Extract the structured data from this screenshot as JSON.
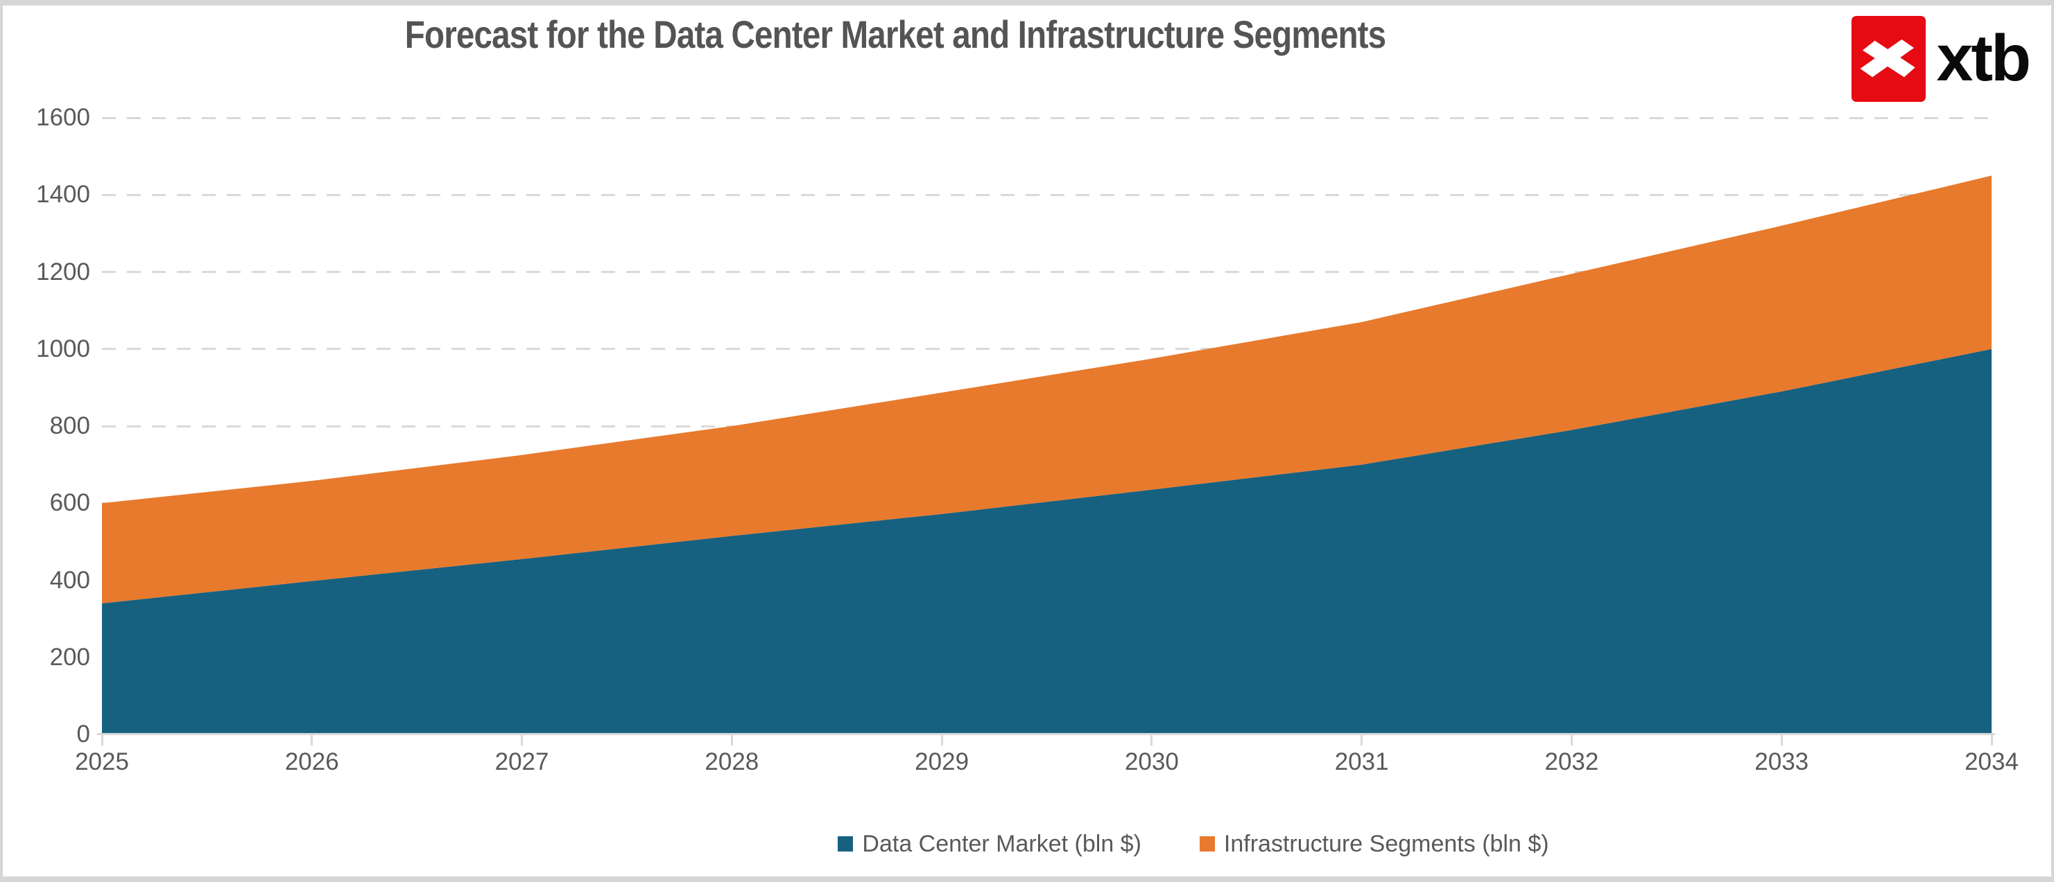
{
  "frame": {
    "background": "#d6d6d6",
    "card_background": "#ffffff"
  },
  "header": {
    "title": "Forecast for the Data Center Market and Infrastructure Segments",
    "title_color": "#545454"
  },
  "logo": {
    "text": "xtb",
    "mark_icon": "xtb-x-mark",
    "mark_color": "#e60a13",
    "mark_glyph_color": "#ffffff",
    "text_color": "#0a0a0a"
  },
  "chart_data": {
    "type": "area",
    "stacked": true,
    "title": "Forecast for the Data Center Market and Infrastructure Segments",
    "x": [
      2025,
      2026,
      2027,
      2028,
      2029,
      2030,
      2031,
      2032,
      2033,
      2034
    ],
    "series": [
      {
        "name": "Data Center Market (bln $)",
        "color": "#176180",
        "values": [
          340,
          398,
          455,
          515,
          572,
          635,
          700,
          790,
          890,
          1000
        ]
      },
      {
        "name": "Infrastructure Segments (bln $)",
        "color": "#e87a2d",
        "values": [
          260,
          260,
          270,
          285,
          315,
          340,
          370,
          405,
          430,
          450
        ]
      }
    ],
    "stacked_totals": [
      600,
      658,
      725,
      800,
      887,
      975,
      1070,
      1195,
      1320,
      1450
    ],
    "xlabel": "",
    "ylabel": "",
    "ylim": [
      0,
      1600
    ],
    "yticks": [
      0,
      200,
      400,
      600,
      800,
      1000,
      1200,
      1400,
      1600
    ],
    "grid": "horizontal dashed",
    "grid_color": "#d9d9d9",
    "axis_line_color": "#d9d9d9",
    "axis_text_color": "#595959",
    "legend_position": "bottom-center"
  }
}
